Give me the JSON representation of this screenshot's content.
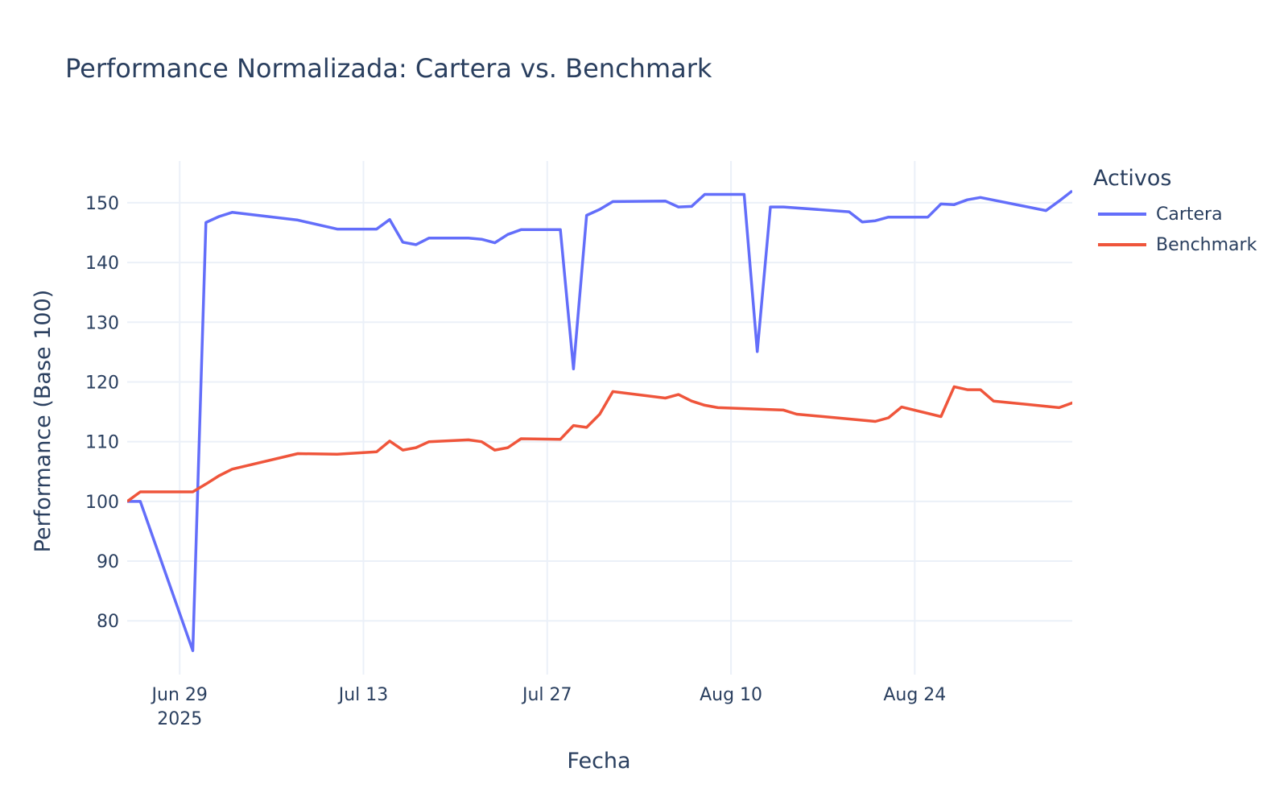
{
  "chart_data": {
    "type": "line",
    "title": "Performance Normalizada: Cartera vs. Benchmark",
    "xlabel": "Fecha",
    "ylabel": "Performance (Base 100)",
    "ylim": [
      71,
      157
    ],
    "yticks": [
      80,
      90,
      100,
      110,
      120,
      130,
      140,
      150
    ],
    "xlim": [
      "2025-06-25",
      "2025-09-05"
    ],
    "xticks": [
      {
        "date": "2025-06-29",
        "label": "Jun 29",
        "sublabel": "2025"
      },
      {
        "date": "2025-07-13",
        "label": "Jul 13",
        "sublabel": ""
      },
      {
        "date": "2025-07-27",
        "label": "Jul 27",
        "sublabel": ""
      },
      {
        "date": "2025-08-10",
        "label": "Aug 10",
        "sublabel": ""
      },
      {
        "date": "2025-08-24",
        "label": "Aug 24",
        "sublabel": ""
      }
    ],
    "grid": true,
    "legend": {
      "title": "Activos",
      "position": "right"
    },
    "series": [
      {
        "name": "Cartera",
        "color": "#636efa",
        "points": [
          [
            "2025-06-25",
            100.0
          ],
          [
            "2025-06-26",
            100.0
          ],
          [
            "2025-06-30",
            75.0
          ],
          [
            "2025-07-01",
            146.7
          ],
          [
            "2025-07-02",
            147.7
          ],
          [
            "2025-07-03",
            148.4
          ],
          [
            "2025-07-08",
            147.1
          ],
          [
            "2025-07-11",
            145.6
          ],
          [
            "2025-07-14",
            145.6
          ],
          [
            "2025-07-15",
            147.2
          ],
          [
            "2025-07-16",
            143.4
          ],
          [
            "2025-07-17",
            143.0
          ],
          [
            "2025-07-18",
            144.1
          ],
          [
            "2025-07-21",
            144.1
          ],
          [
            "2025-07-22",
            143.9
          ],
          [
            "2025-07-23",
            143.3
          ],
          [
            "2025-07-24",
            144.7
          ],
          [
            "2025-07-25",
            145.5
          ],
          [
            "2025-07-28",
            145.5
          ],
          [
            "2025-07-29",
            122.2
          ],
          [
            "2025-07-30",
            147.9
          ],
          [
            "2025-07-31",
            148.9
          ],
          [
            "2025-08-01",
            150.2
          ],
          [
            "2025-08-05",
            150.3
          ],
          [
            "2025-08-06",
            149.3
          ],
          [
            "2025-08-07",
            149.4
          ],
          [
            "2025-08-08",
            151.4
          ],
          [
            "2025-08-11",
            151.4
          ],
          [
            "2025-08-12",
            125.1
          ],
          [
            "2025-08-13",
            149.3
          ],
          [
            "2025-08-14",
            149.3
          ],
          [
            "2025-08-19",
            148.5
          ],
          [
            "2025-08-20",
            146.8
          ],
          [
            "2025-08-21",
            147.0
          ],
          [
            "2025-08-22",
            147.6
          ],
          [
            "2025-08-25",
            147.6
          ],
          [
            "2025-08-26",
            149.8
          ],
          [
            "2025-08-27",
            149.7
          ],
          [
            "2025-08-28",
            150.5
          ],
          [
            "2025-08-29",
            150.9
          ],
          [
            "2025-09-03",
            148.7
          ],
          [
            "2025-09-04",
            150.3
          ],
          [
            "2025-09-05",
            152.0
          ]
        ]
      },
      {
        "name": "Benchmark",
        "color": "#ef553b",
        "points": [
          [
            "2025-06-25",
            100.0
          ],
          [
            "2025-06-26",
            101.6
          ],
          [
            "2025-06-30",
            101.6
          ],
          [
            "2025-07-01",
            102.9
          ],
          [
            "2025-07-02",
            104.3
          ],
          [
            "2025-07-03",
            105.4
          ],
          [
            "2025-07-08",
            108.0
          ],
          [
            "2025-07-11",
            107.9
          ],
          [
            "2025-07-14",
            108.3
          ],
          [
            "2025-07-15",
            110.1
          ],
          [
            "2025-07-16",
            108.6
          ],
          [
            "2025-07-17",
            109.0
          ],
          [
            "2025-07-18",
            110.0
          ],
          [
            "2025-07-21",
            110.3
          ],
          [
            "2025-07-22",
            110.0
          ],
          [
            "2025-07-23",
            108.6
          ],
          [
            "2025-07-24",
            109.0
          ],
          [
            "2025-07-25",
            110.5
          ],
          [
            "2025-07-28",
            110.4
          ],
          [
            "2025-07-29",
            112.7
          ],
          [
            "2025-07-30",
            112.4
          ],
          [
            "2025-07-31",
            114.6
          ],
          [
            "2025-08-01",
            118.4
          ],
          [
            "2025-08-05",
            117.3
          ],
          [
            "2025-08-06",
            117.9
          ],
          [
            "2025-08-07",
            116.8
          ],
          [
            "2025-08-08",
            116.1
          ],
          [
            "2025-08-09",
            115.7
          ],
          [
            "2025-08-14",
            115.3
          ],
          [
            "2025-08-15",
            114.6
          ],
          [
            "2025-08-21",
            113.4
          ],
          [
            "2025-08-22",
            114.0
          ],
          [
            "2025-08-23",
            115.8
          ],
          [
            "2025-08-26",
            114.2
          ],
          [
            "2025-08-27",
            119.2
          ],
          [
            "2025-08-28",
            118.7
          ],
          [
            "2025-08-29",
            118.7
          ],
          [
            "2025-08-30",
            116.8
          ],
          [
            "2025-09-04",
            115.7
          ],
          [
            "2025-09-05",
            116.5
          ],
          [
            "2025-09-06",
            116.8
          ]
        ]
      }
    ]
  }
}
